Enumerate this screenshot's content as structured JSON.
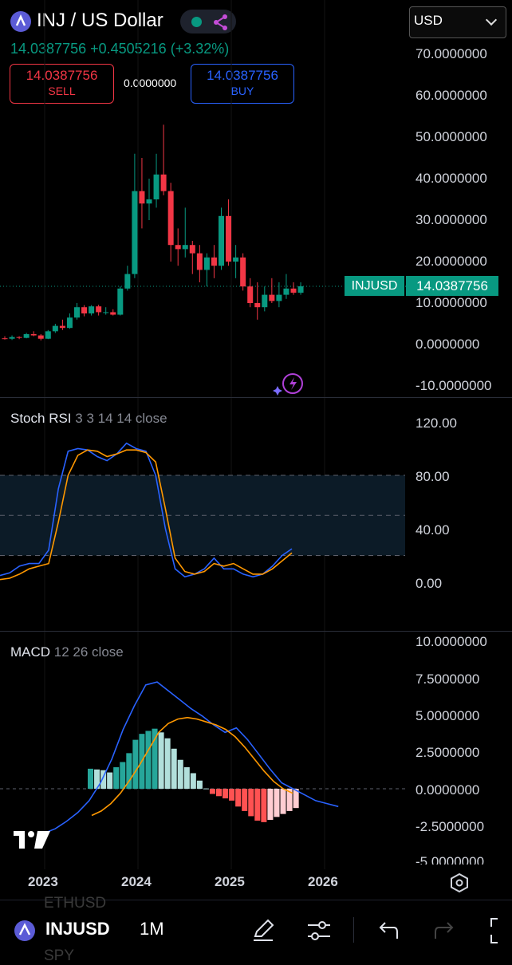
{
  "header": {
    "title": "INJ / US Dollar",
    "price_change": "14.0387756 +0.4505216 (+3.32%)",
    "currency": "USD"
  },
  "trade": {
    "sell_price": "14.0387756",
    "sell_label": "SELL",
    "spread": "0.0000000",
    "buy_price": "14.0387756",
    "buy_label": "BUY"
  },
  "price_axis": [
    "70.0000000",
    "60.0000000",
    "50.0000000",
    "40.0000000",
    "30.0000000",
    "20.0000000",
    "10.0000000",
    "0.0000000",
    "-10.0000000"
  ],
  "price_tag": {
    "symbol": "INJUSD",
    "price": "14.0387756"
  },
  "stoch_rsi": {
    "name": "Stoch RSI",
    "params": "3 3 14 14 close",
    "axis": [
      "120.00",
      "80.00",
      "40.00",
      "0.00"
    ]
  },
  "macd": {
    "name": "MACD",
    "params": "12 26 close",
    "axis": [
      "10.0000000",
      "7.5000000",
      "5.0000000",
      "2.5000000",
      "0.0000000",
      "-2.5000000",
      "-5.0000000"
    ]
  },
  "time_axis": [
    "2023",
    "2024",
    "2025",
    "2026"
  ],
  "bottom_bar": {
    "symbol": "INJUSD",
    "interval": "1M",
    "ghost_top": "ETHUSD",
    "ghost_bottom": "SPY"
  },
  "colors": {
    "up": "#089981",
    "down": "#f23645",
    "blue": "#2962ff",
    "signal": "#ff9800"
  },
  "chart_data": [
    {
      "type": "candlestick",
      "title": "INJ / US Dollar",
      "interval": "1M",
      "ylim": [
        -10,
        70
      ],
      "candles": [
        {
          "o": 1.5,
          "h": 2.0,
          "l": 1.2,
          "c": 1.4
        },
        {
          "o": 1.4,
          "h": 2.2,
          "l": 1.1,
          "c": 1.8
        },
        {
          "o": 1.8,
          "h": 2.0,
          "l": 1.3,
          "c": 1.6
        },
        {
          "o": 1.6,
          "h": 2.8,
          "l": 1.5,
          "c": 2.5
        },
        {
          "o": 2.5,
          "h": 3.2,
          "l": 2.0,
          "c": 2.2
        },
        {
          "o": 2.2,
          "h": 2.5,
          "l": 1.0,
          "c": 1.4
        },
        {
          "o": 1.4,
          "h": 3.5,
          "l": 1.3,
          "c": 3.2
        },
        {
          "o": 3.2,
          "h": 5.0,
          "l": 2.8,
          "c": 4.5
        },
        {
          "o": 4.5,
          "h": 6.0,
          "l": 3.5,
          "c": 4.0
        },
        {
          "o": 4.0,
          "h": 7.5,
          "l": 3.8,
          "c": 6.5
        },
        {
          "o": 6.5,
          "h": 10.0,
          "l": 6.0,
          "c": 9.0
        },
        {
          "o": 9.0,
          "h": 9.5,
          "l": 6.8,
          "c": 7.5
        },
        {
          "o": 7.5,
          "h": 9.5,
          "l": 7.0,
          "c": 9.2
        },
        {
          "o": 9.2,
          "h": 9.6,
          "l": 7.0,
          "c": 7.8
        },
        {
          "o": 7.8,
          "h": 9.0,
          "l": 7.2,
          "c": 7.8
        },
        {
          "o": 7.8,
          "h": 8.5,
          "l": 7.0,
          "c": 7.2
        },
        {
          "o": 7.2,
          "h": 14.0,
          "l": 7.0,
          "c": 13.5
        },
        {
          "o": 13.5,
          "h": 19.0,
          "l": 13.0,
          "c": 17.0
        },
        {
          "o": 17.0,
          "h": 46.0,
          "l": 16.0,
          "c": 37.0
        },
        {
          "o": 37.0,
          "h": 45.0,
          "l": 28.0,
          "c": 34.0
        },
        {
          "o": 34.0,
          "h": 40.0,
          "l": 30.0,
          "c": 35.0
        },
        {
          "o": 35.0,
          "h": 46.0,
          "l": 33.0,
          "c": 41.0
        },
        {
          "o": 41.0,
          "h": 53.0,
          "l": 36.0,
          "c": 37.0
        },
        {
          "o": 37.0,
          "h": 39.0,
          "l": 20.0,
          "c": 24.0
        },
        {
          "o": 24.0,
          "h": 28.0,
          "l": 19.0,
          "c": 23.0
        },
        {
          "o": 23.0,
          "h": 33.0,
          "l": 21.0,
          "c": 24.0
        },
        {
          "o": 24.0,
          "h": 25.0,
          "l": 17.0,
          "c": 22.0
        },
        {
          "o": 22.0,
          "h": 24.0,
          "l": 15.0,
          "c": 18.0
        },
        {
          "o": 18.0,
          "h": 22.0,
          "l": 14.0,
          "c": 21.0
        },
        {
          "o": 21.0,
          "h": 24.0,
          "l": 16.0,
          "c": 19.0
        },
        {
          "o": 19.0,
          "h": 33.0,
          "l": 18.0,
          "c": 31.0
        },
        {
          "o": 31.0,
          "h": 35.0,
          "l": 19.0,
          "c": 20.0
        },
        {
          "o": 20.0,
          "h": 24.0,
          "l": 16.0,
          "c": 21.0
        },
        {
          "o": 21.0,
          "h": 22.0,
          "l": 13.0,
          "c": 14.0
        },
        {
          "o": 14.0,
          "h": 16.0,
          "l": 9.0,
          "c": 10.0
        },
        {
          "o": 10.0,
          "h": 15.0,
          "l": 6.0,
          "c": 9.0
        },
        {
          "o": 9.0,
          "h": 14.0,
          "l": 8.0,
          "c": 12.0
        },
        {
          "o": 12.0,
          "h": 16.0,
          "l": 10.0,
          "c": 10.5
        },
        {
          "o": 10.5,
          "h": 15.0,
          "l": 9.0,
          "c": 12.0
        },
        {
          "o": 12.0,
          "h": 17.0,
          "l": 11.0,
          "c": 13.5
        },
        {
          "o": 13.5,
          "h": 15.0,
          "l": 12.0,
          "c": 12.5
        },
        {
          "o": 12.5,
          "h": 15.0,
          "l": 12.0,
          "c": 14.04
        }
      ],
      "last_price": 14.0387756
    },
    {
      "type": "line",
      "title": "Stoch RSI",
      "ylim": [
        -20,
        140
      ],
      "bands": [
        20,
        50,
        80
      ],
      "series": [
        {
          "name": "K",
          "values": [
            5,
            7,
            12,
            14,
            14,
            24,
            70,
            98,
            100,
            99,
            94,
            91,
            96,
            104,
            100,
            98,
            80,
            40,
            10,
            4,
            6,
            10,
            18,
            10,
            10,
            6,
            4,
            6,
            12,
            20,
            25
          ]
        },
        {
          "name": "D",
          "values": [
            2,
            3,
            6,
            10,
            12,
            14,
            45,
            80,
            95,
            99,
            98,
            94,
            96,
            99,
            99,
            97,
            90,
            55,
            18,
            8,
            6,
            8,
            14,
            12,
            14,
            10,
            6,
            6,
            10,
            16,
            22
          ]
        }
      ]
    },
    {
      "type": "bar",
      "title": "MACD",
      "ylim": [
        -5,
        10
      ],
      "histogram": [
        1.35,
        1.3,
        1.25,
        1.1,
        1.45,
        1.8,
        2.4,
        3.3,
        3.7,
        3.9,
        4.05,
        3.8,
        3.4,
        2.7,
        1.95,
        1.45,
        1.05,
        0.55,
        0.02,
        -0.35,
        -0.5,
        -0.65,
        -0.8,
        -1.2,
        -1.5,
        -1.85,
        -2.15,
        -2.25,
        -2.1,
        -1.9,
        -1.7,
        -1.5,
        -1.3
      ],
      "series": [
        {
          "name": "MACD",
          "values": [
            -3.0,
            -2.7,
            -2.2,
            -1.6,
            -0.8,
            0.4,
            2.0,
            4.0,
            5.6,
            7.0,
            7.2,
            6.6,
            6.0,
            5.4,
            4.9,
            4.3,
            3.8,
            4.1,
            3.3,
            2.3,
            1.3,
            0.4,
            0.0,
            -0.4,
            -0.8,
            -1.0,
            -1.2
          ]
        },
        {
          "name": "Signal",
          "values": [
            -1.8,
            -1.5,
            -1.0,
            -0.3,
            0.6,
            1.6,
            2.7,
            3.8,
            4.4,
            4.7,
            4.8,
            4.7,
            4.5,
            4.3,
            4.0,
            3.5,
            2.8,
            2.0,
            1.2,
            0.5,
            0.0,
            -0.3
          ]
        }
      ]
    }
  ]
}
